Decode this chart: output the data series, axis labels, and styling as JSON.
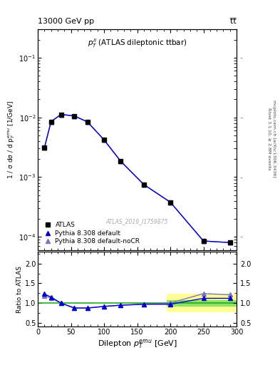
{
  "title_left": "13000 GeV pp",
  "title_right": "t̅t̅",
  "panel_title": "$p_T^{ll}$ (ATLAS dileptonic ttbar)",
  "watermark": "ATLAS_2019_I1759875",
  "xlabel": "Dilepton $p_T^{emu}$ [GeV]",
  "ylabel": "1 / σ dσ / d p$_T^{emu}$ [1/GeV]",
  "ylabel_ratio": "Ratio to ATLAS",
  "right_text1": "Rivet 3.1.10, ≥ 2.8M events",
  "right_text2": "mcplots.cern.ch [arXiv:1306.3436]",
  "x_data": [
    10.0,
    20.0,
    35.0,
    55.0,
    75.0,
    100.0,
    125.0,
    160.0,
    200.0,
    250.0,
    290.0
  ],
  "atlas_y": [
    0.0031,
    0.0085,
    0.0112,
    0.0106,
    0.0084,
    0.0042,
    0.00185,
    0.00075,
    0.00038,
    8.5e-05,
    8e-05
  ],
  "pythia_default_y": [
    0.0031,
    0.0085,
    0.0112,
    0.0106,
    0.0084,
    0.0042,
    0.00185,
    0.00075,
    0.00038,
    8.5e-05,
    8e-05
  ],
  "pythia_nocr_y": [
    0.0031,
    0.0085,
    0.0112,
    0.0106,
    0.0084,
    0.0042,
    0.00185,
    0.00075,
    0.00038,
    8.5e-05,
    8e-05
  ],
  "ratio_default": [
    1.23,
    1.15,
    1.0,
    0.875,
    0.875,
    0.915,
    0.945,
    0.97,
    0.97,
    1.12,
    1.12
  ],
  "ratio_nocr": [
    1.19,
    1.12,
    1.0,
    0.87,
    0.87,
    0.915,
    0.945,
    0.97,
    1.0,
    1.24,
    1.21
  ],
  "atlas_color": "#000000",
  "pythia_default_color": "#0000cc",
  "pythia_nocr_color": "#7777bb",
  "green_band_lo": 0.92,
  "green_band_hi": 1.08,
  "yellow_band_lo": 0.76,
  "yellow_band_hi": 1.24,
  "green_color": "#33cc33",
  "yellow_color": "#ffff44",
  "green_alpha": 0.55,
  "yellow_alpha": 0.55,
  "band_xstart": 195,
  "band_xend": 305,
  "xlim": [
    0,
    300
  ],
  "ylim_main": [
    6e-05,
    0.3
  ],
  "ylim_ratio": [
    0.4,
    2.3
  ]
}
